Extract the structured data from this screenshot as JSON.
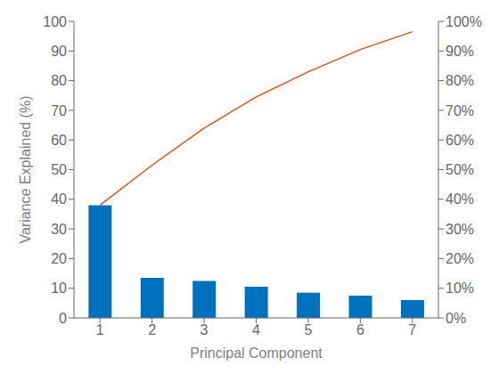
{
  "chart_data": {
    "type": "bar",
    "xlabel": "Principal Component",
    "ylabel": "Variance Explained (%)",
    "x": [
      1,
      2,
      3,
      4,
      5,
      6,
      7
    ],
    "xlim": [
      0.5,
      7.5
    ],
    "xticks": [
      1,
      2,
      3,
      4,
      5,
      6,
      7
    ],
    "ylim": [
      0,
      100
    ],
    "yticks": [
      0,
      10,
      20,
      30,
      40,
      50,
      60,
      70,
      80,
      90,
      100
    ],
    "y2lim": [
      0,
      100
    ],
    "y2ticks": [
      {
        "value": 0,
        "label": "0%"
      },
      {
        "value": 10,
        "label": "10%"
      },
      {
        "value": 20,
        "label": "20%"
      },
      {
        "value": 30,
        "label": "30%"
      },
      {
        "value": 40,
        "label": "40%"
      },
      {
        "value": 50,
        "label": "50%"
      },
      {
        "value": 60,
        "label": "60%"
      },
      {
        "value": 70,
        "label": "70%"
      },
      {
        "value": 80,
        "label": "80%"
      },
      {
        "value": 90,
        "label": "90%"
      },
      {
        "value": 100,
        "label": "100%"
      }
    ],
    "grid": false,
    "series": [
      {
        "type": "bar",
        "color": "#0072BD",
        "values": [
          38.0,
          13.5,
          12.5,
          10.5,
          8.5,
          7.5,
          6.0
        ]
      },
      {
        "type": "line",
        "color": "#D95319",
        "axis": "y2",
        "values": [
          38.0,
          51.5,
          64.0,
          74.5,
          83.0,
          90.5,
          96.5
        ]
      }
    ]
  }
}
